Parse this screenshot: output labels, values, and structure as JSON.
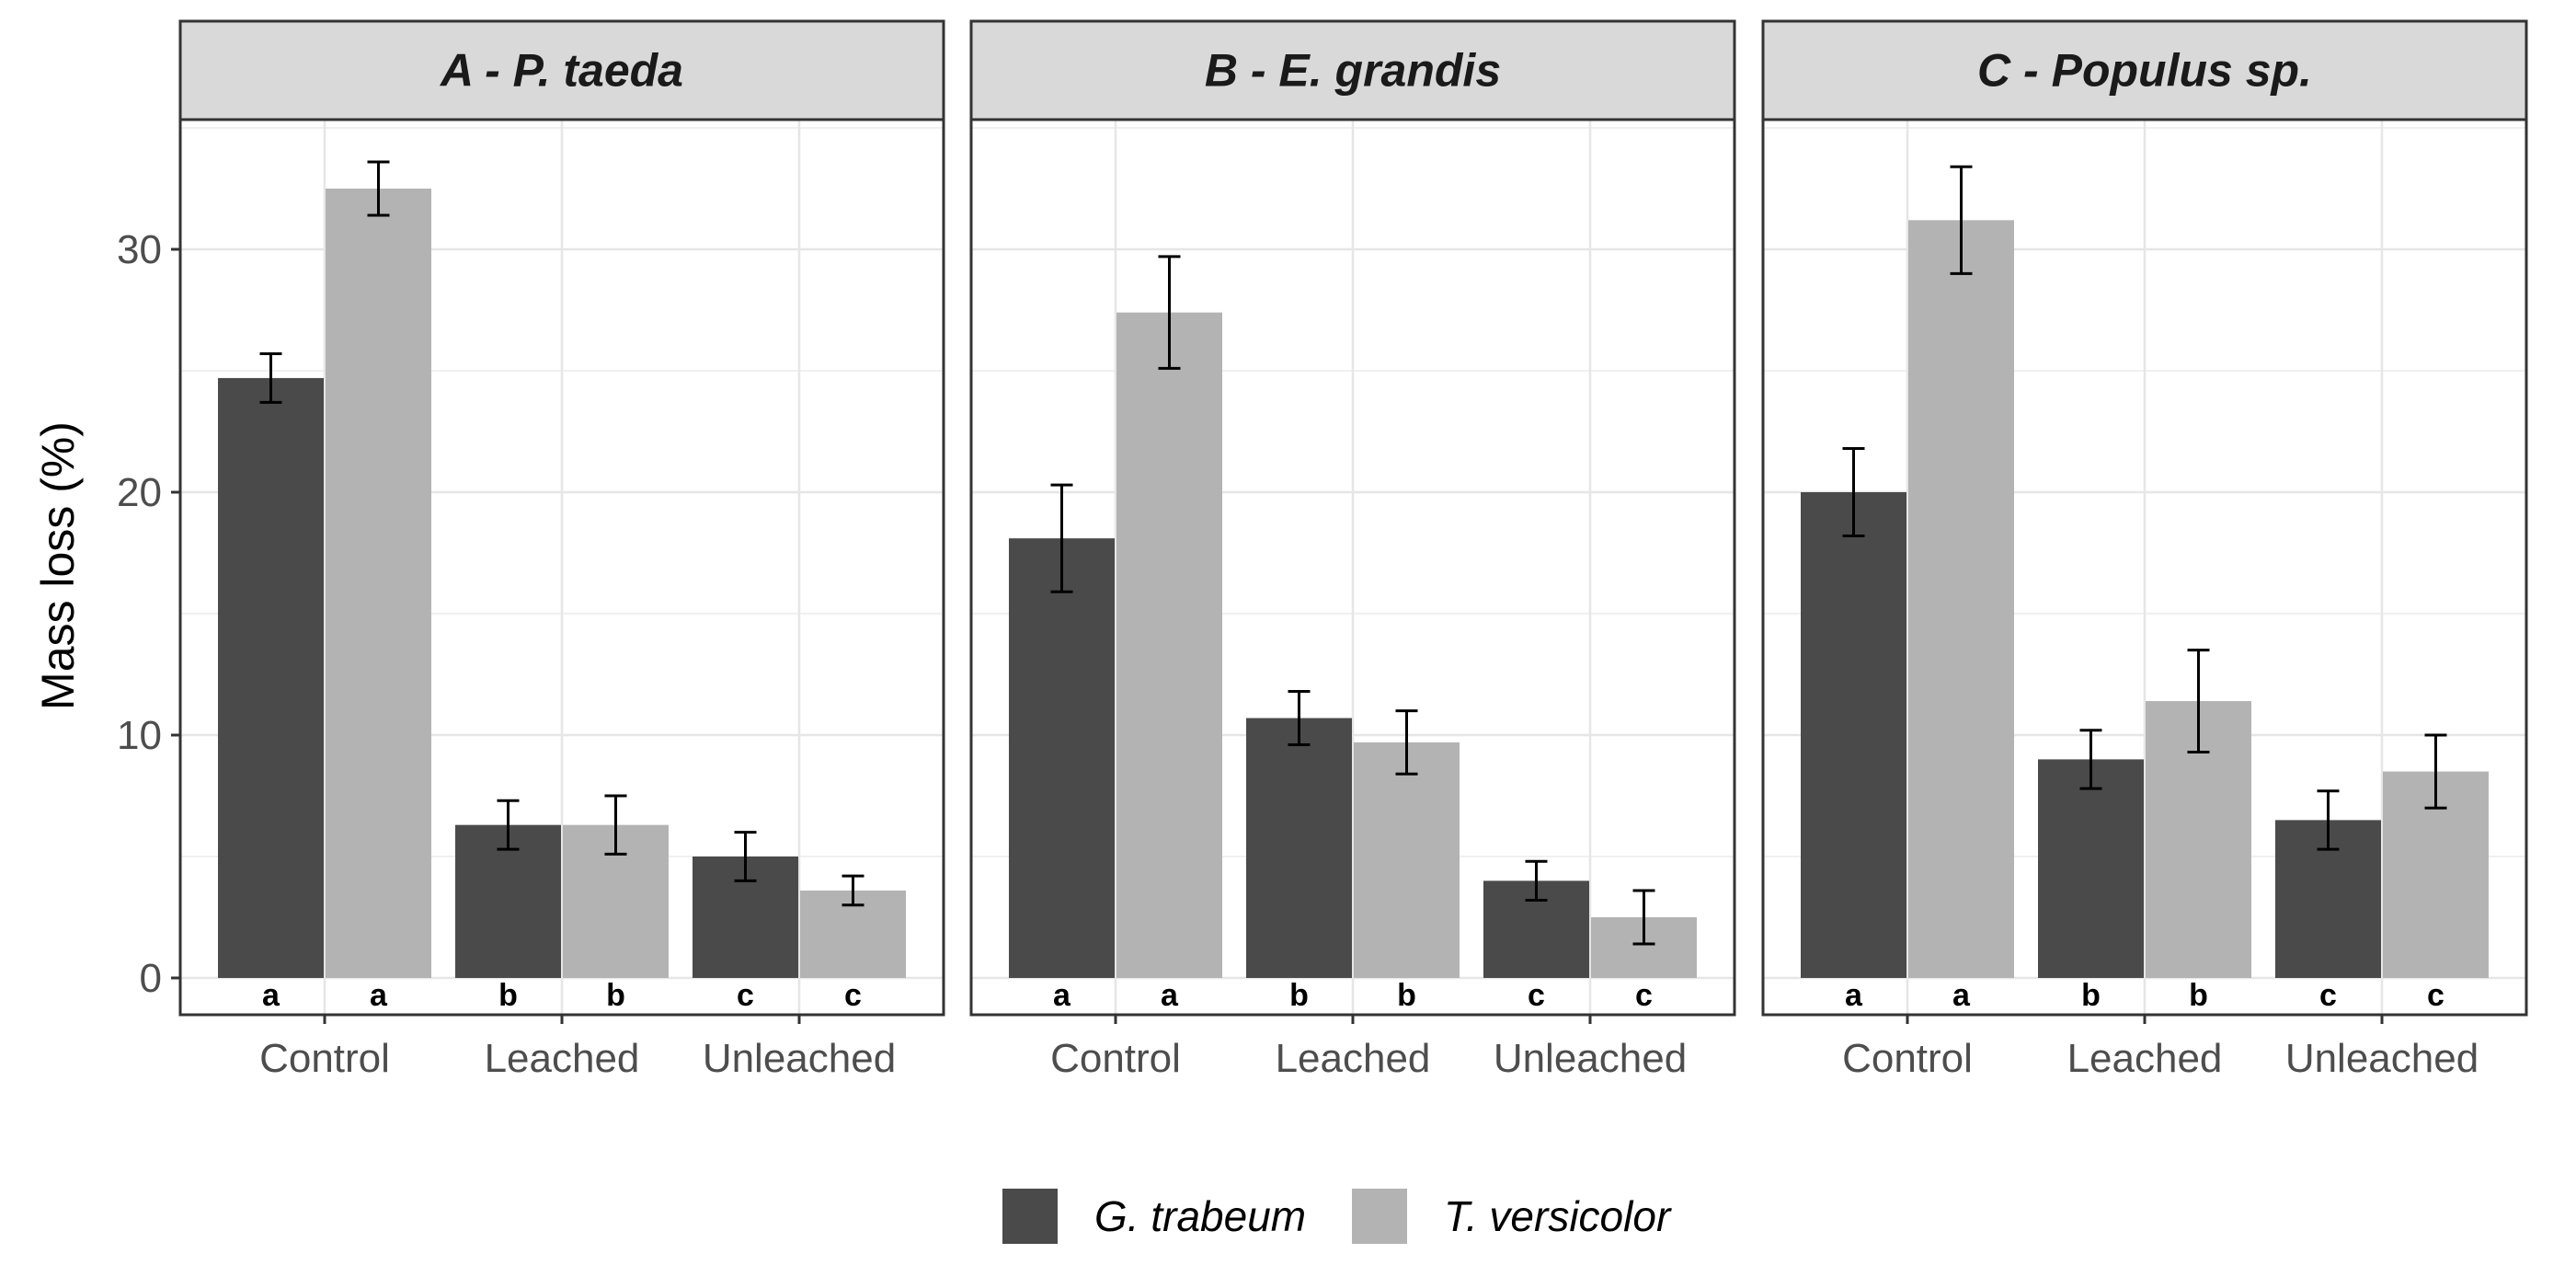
{
  "chart_data": {
    "type": "bar",
    "ylabel": "Mass loss (%)",
    "xlabel": "",
    "ylim": [
      0,
      35
    ],
    "yticks": [
      0,
      10,
      20,
      30
    ],
    "categories": [
      "Control",
      "Leached",
      "Unleached"
    ],
    "legend": {
      "position": "bottom",
      "entries": [
        {
          "name": "G. trabeum",
          "color": "#4a4a4a"
        },
        {
          "name": "T. versicolor",
          "color": "#b3b3b3"
        }
      ]
    },
    "panels": [
      {
        "title": "A - P. taeda",
        "series": [
          {
            "name": "G. trabeum",
            "values": [
              24.7,
              6.3,
              5.0
            ],
            "errors": [
              1.0,
              1.0,
              1.0
            ],
            "letters": [
              "a",
              "b",
              "c"
            ]
          },
          {
            "name": "T. versicolor",
            "values": [
              32.5,
              6.3,
              3.6
            ],
            "errors": [
              1.1,
              1.2,
              0.6
            ],
            "letters": [
              "a",
              "b",
              "c"
            ]
          }
        ]
      },
      {
        "title": "B - E. grandis",
        "series": [
          {
            "name": "G. trabeum",
            "values": [
              18.1,
              10.7,
              4.0
            ],
            "errors": [
              2.2,
              1.1,
              0.8
            ],
            "letters": [
              "a",
              "b",
              "c"
            ]
          },
          {
            "name": "T. versicolor",
            "values": [
              27.4,
              9.7,
              2.5
            ],
            "errors": [
              2.3,
              1.3,
              1.1
            ],
            "letters": [
              "a",
              "b",
              "c"
            ]
          }
        ]
      },
      {
        "title": "C - Populus sp.",
        "series": [
          {
            "name": "G. trabeum",
            "values": [
              20.0,
              9.0,
              6.5
            ],
            "errors": [
              1.8,
              1.2,
              1.2
            ],
            "letters": [
              "a",
              "b",
              "c"
            ]
          },
          {
            "name": "T. versicolor",
            "values": [
              31.2,
              11.4,
              8.5
            ],
            "errors": [
              2.2,
              2.1,
              1.5
            ],
            "letters": [
              "a",
              "b",
              "c"
            ]
          }
        ]
      }
    ]
  }
}
